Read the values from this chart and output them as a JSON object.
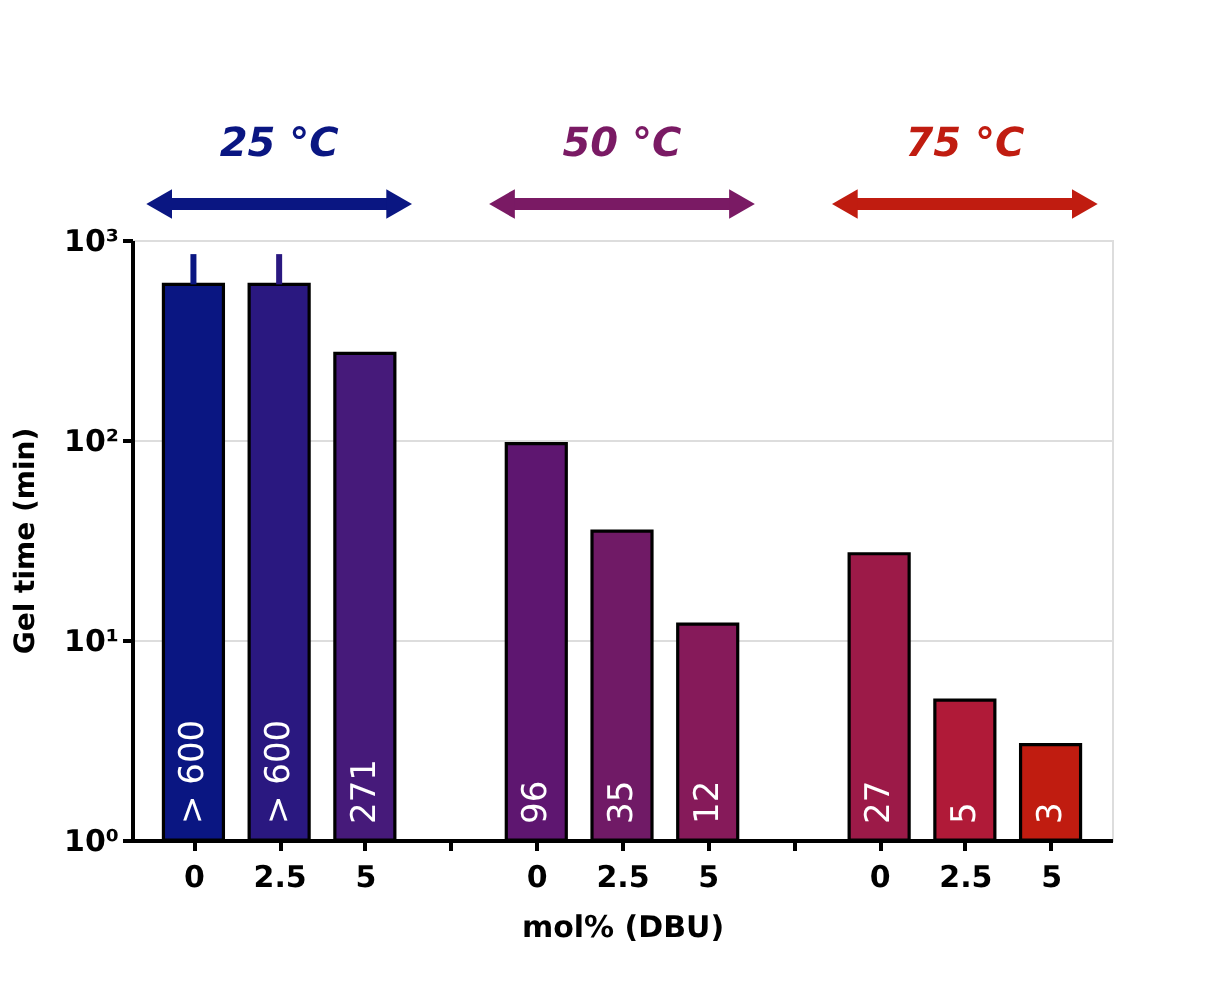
{
  "chart_data": {
    "type": "bar",
    "xlabel": "mol% (DBU)",
    "ylabel": "Gel time (min)",
    "categories": [
      "0",
      "2.5",
      "5",
      null,
      "0",
      "2.5",
      "5",
      null,
      "0",
      "2.5",
      "5"
    ],
    "values": [
      600,
      600,
      271,
      null,
      96,
      35,
      12,
      null,
      27,
      5,
      3
    ],
    "colors": [
      "#0a1682",
      "#2a1880",
      "#461a7a",
      null,
      "#5e1670",
      "#701a66",
      "#861a5a",
      null,
      "#9c1a48",
      "#b01a38",
      "#c01c10"
    ],
    "value_labels": [
      "> 600",
      "> 600",
      "271",
      null,
      "96",
      "35",
      "12",
      null,
      "27",
      "5",
      "3"
    ],
    "errors": [
      [
        600,
        850
      ],
      [
        600,
        850
      ],
      null,
      null,
      null,
      null,
      null,
      null,
      null,
      null,
      null
    ],
    "log": true,
    "ylim": [
      1,
      1000
    ],
    "yticks": [
      {
        "value": 1,
        "label": "10⁰"
      },
      {
        "value": 10,
        "label": "10¹"
      },
      {
        "value": 100,
        "label": "10²"
      },
      {
        "value": 1000,
        "label": "10³"
      }
    ],
    "grid": "y",
    "legend": false,
    "annotations": [
      "25 °C",
      "50 °C",
      "75 °C"
    ]
  }
}
